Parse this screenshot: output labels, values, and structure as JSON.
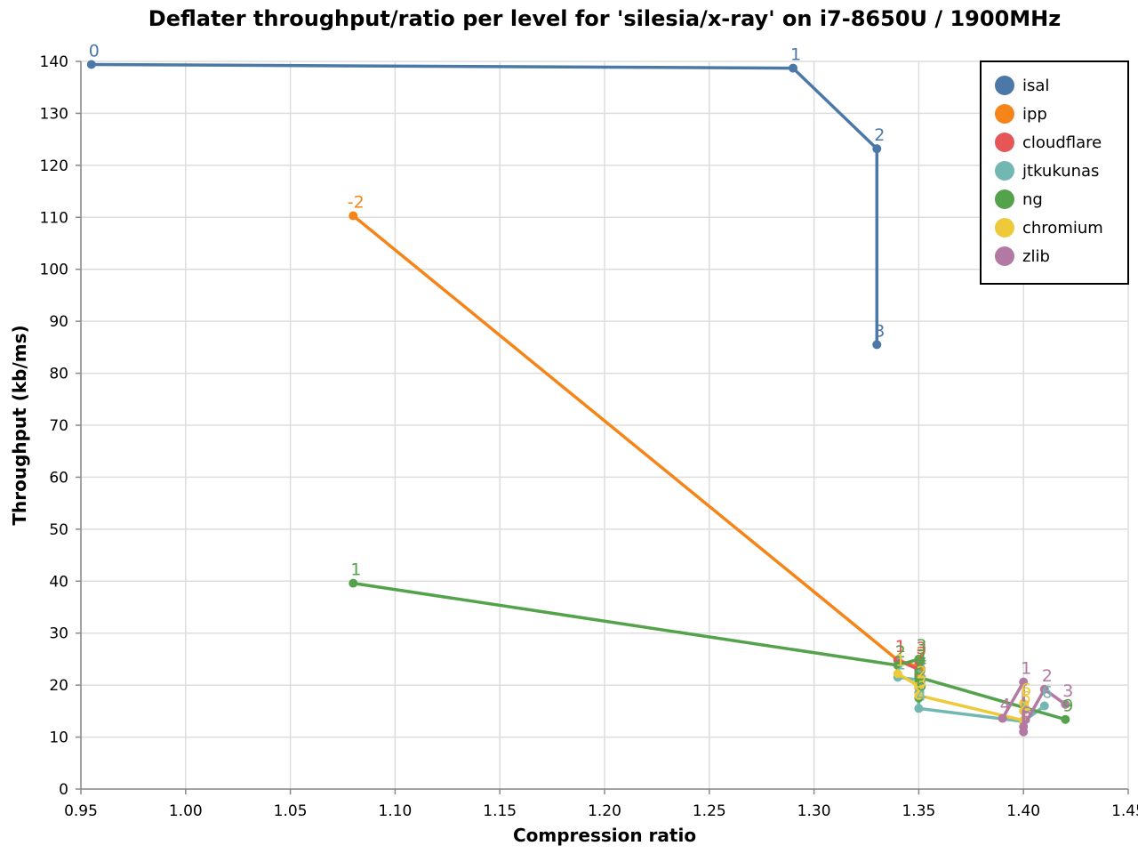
{
  "chart_data": {
    "type": "line",
    "title": "Deflater throughput/ratio per level for 'silesia/x-ray' on i7-8650U / 1900MHz",
    "xlabel": "Compression ratio",
    "ylabel": "Throughput (kb/ms)",
    "xlim": [
      0.95,
      1.45
    ],
    "ylim": [
      0,
      140
    ],
    "x_ticks": [
      "0.95",
      "1.00",
      "1.05",
      "1.10",
      "1.15",
      "1.20",
      "1.25",
      "1.30",
      "1.35",
      "1.40",
      "1.45"
    ],
    "y_ticks": [
      "0",
      "10",
      "20",
      "30",
      "40",
      "50",
      "60",
      "70",
      "80",
      "90",
      "100",
      "110",
      "120",
      "130",
      "140"
    ],
    "grid": true,
    "legend_position": "top-right",
    "series": [
      {
        "name": "isal",
        "color": "#4c78a8",
        "points": [
          {
            "x": 0.955,
            "y": 139.4,
            "label": "0"
          },
          {
            "x": 1.29,
            "y": 138.7,
            "label": "1"
          },
          {
            "x": 1.33,
            "y": 123.2,
            "label": "2"
          },
          {
            "x": 1.33,
            "y": 85.5,
            "label": "3"
          }
        ]
      },
      {
        "name": "ipp",
        "color": "#f58518",
        "points": [
          {
            "x": 1.08,
            "y": 110.3,
            "label": "-2"
          },
          {
            "x": 1.34,
            "y": 24.8,
            "label": "1"
          },
          {
            "x": 1.35,
            "y": 23.5,
            "label": "2"
          },
          {
            "x": 1.35,
            "y": 21.0,
            "label": "3"
          },
          {
            "x": 1.35,
            "y": 19.5,
            "label": "4"
          },
          {
            "x": 1.35,
            "y": 18.5,
            "label": "5"
          }
        ]
      },
      {
        "name": "cloudflare",
        "color": "#e45756",
        "points": [
          {
            "x": 1.34,
            "y": 24.8,
            "label": "1"
          },
          {
            "x": 1.35,
            "y": 23.0,
            "label": "2"
          },
          {
            "x": 1.35,
            "y": 24.5,
            "label": "3"
          },
          {
            "x": 1.35,
            "y": 22.0,
            "label": "4"
          }
        ]
      },
      {
        "name": "jtkukunas",
        "color": "#72b7b2",
        "points": [
          {
            "x": 1.34,
            "y": 21.5,
            "label": "1"
          },
          {
            "x": 1.35,
            "y": 21.0,
            "label": "2"
          },
          {
            "x": 1.35,
            "y": 18.5,
            "label": "3"
          },
          {
            "x": 1.35,
            "y": 15.5,
            "label": "4"
          },
          {
            "x": 1.4,
            "y": 13.0,
            "label": "5"
          },
          {
            "x": 1.41,
            "y": 16.0,
            "label": "6"
          }
        ]
      },
      {
        "name": "ng",
        "color": "#54a24b",
        "points": [
          {
            "x": 1.08,
            "y": 39.6,
            "label": "1"
          },
          {
            "x": 1.34,
            "y": 23.8,
            "label": "2"
          },
          {
            "x": 1.35,
            "y": 25.0,
            "label": "3"
          },
          {
            "x": 1.35,
            "y": 22.5,
            "label": "4"
          },
          {
            "x": 1.35,
            "y": 20.5,
            "label": "5"
          },
          {
            "x": 1.35,
            "y": 17.5,
            "label": "6"
          },
          {
            "x": 1.35,
            "y": 21.5,
            "label": "7"
          },
          {
            "x": 1.42,
            "y": 13.4,
            "label": "9"
          }
        ]
      },
      {
        "name": "chromium",
        "color": "#eeca3b",
        "points": [
          {
            "x": 1.34,
            "y": 22.2,
            "label": "1"
          },
          {
            "x": 1.35,
            "y": 19.8,
            "label": "2"
          },
          {
            "x": 1.35,
            "y": 18.0,
            "label": "3"
          },
          {
            "x": 1.4,
            "y": 13.2,
            "label": "4"
          },
          {
            "x": 1.4,
            "y": 15.0,
            "label": "5"
          },
          {
            "x": 1.4,
            "y": 16.5,
            "label": "6"
          }
        ]
      },
      {
        "name": "zlib",
        "color": "#b279a2",
        "points": [
          {
            "x": 1.39,
            "y": 13.6,
            "label": "4"
          },
          {
            "x": 1.4,
            "y": 20.6,
            "label": "1"
          },
          {
            "x": 1.4,
            "y": 11.0,
            "label": "5"
          },
          {
            "x": 1.4,
            "y": 12.0,
            "label": "6"
          },
          {
            "x": 1.41,
            "y": 19.2,
            "label": "2"
          },
          {
            "x": 1.42,
            "y": 16.3,
            "label": "3"
          }
        ]
      }
    ]
  }
}
